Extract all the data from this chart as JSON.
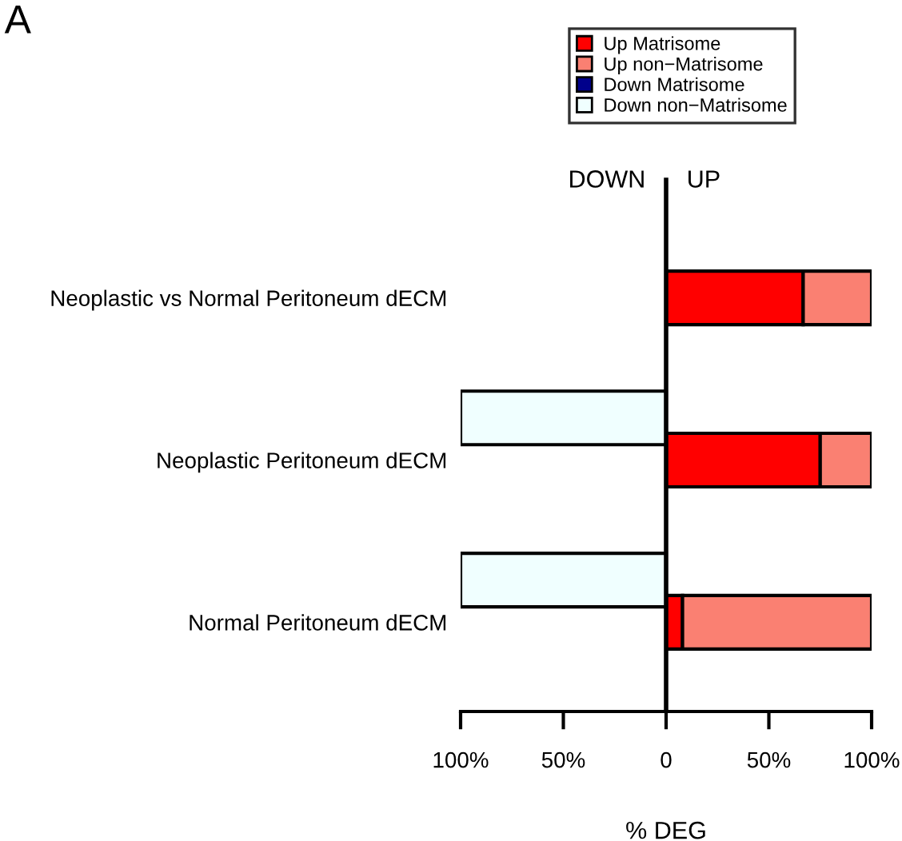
{
  "chart_data": {
    "type": "bar",
    "orientation": "horizontal",
    "stacked": true,
    "title": "A",
    "xlabel": "% DEG",
    "categories": [
      "Neoplastic vs Normal Peritoneum dECM",
      "Neoplastic Peritoneum dECM",
      "Normal Peritoneum dECM"
    ],
    "series": [
      {
        "name": "Up Matrisome",
        "color": "#ff0000",
        "values": [
          66.7,
          75,
          8
        ]
      },
      {
        "name": "Up non−Matrisome",
        "color": "#fa8072",
        "values": [
          33.3,
          25,
          92
        ]
      },
      {
        "name": "Down Matrisome",
        "color": "#00008b",
        "values": [
          0,
          0,
          0
        ]
      },
      {
        "name": "Down non−Matrisome",
        "color": "#f0ffff",
        "values": [
          0,
          -100,
          -100
        ]
      }
    ],
    "xlim": [
      -100,
      100
    ],
    "xticks": [
      {
        "value": -100,
        "label": "100%"
      },
      {
        "value": -50,
        "label": "50%"
      },
      0,
      {
        "value": 50,
        "label": "50%"
      },
      {
        "value": 100,
        "label": "100%"
      }
    ],
    "ref_lines": [
      {
        "axis": "x",
        "value": 0
      }
    ],
    "annotations": [
      "DOWN",
      "UP"
    ],
    "legend": "top",
    "grid": false
  }
}
